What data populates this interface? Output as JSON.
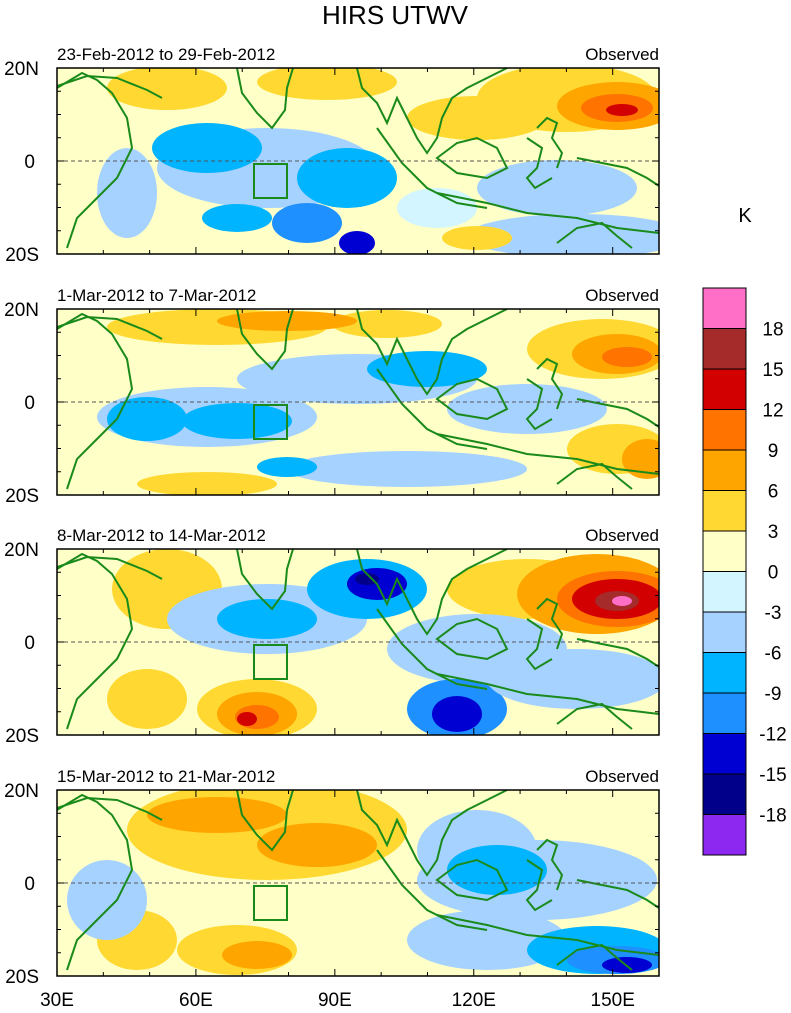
{
  "title": "HIRS UTWV",
  "unit_label": "K",
  "panels": [
    {
      "date_range": "23-Feb-2012 to 29-Feb-2012",
      "label_right": "Observed"
    },
    {
      "date_range": "1-Mar-2012 to 7-Mar-2012",
      "label_right": "Observed"
    },
    {
      "date_range": "8-Mar-2012 to 14-Mar-2012",
      "label_right": "Observed"
    },
    {
      "date_range": "15-Mar-2012 to 21-Mar-2012",
      "label_right": "Observed"
    }
  ],
  "lat_labels": [
    "20N",
    "0",
    "20S"
  ],
  "lon_labels": [
    "30E",
    "60E",
    "90E",
    "120E",
    "150E"
  ],
  "colorbar": {
    "ticks": [
      "18",
      "15",
      "12",
      "9",
      "6",
      "3",
      "0",
      "-3",
      "-6",
      "-9",
      "-12",
      "-15",
      "-18"
    ],
    "colors": [
      "#ff6ec7",
      "#a52a2a",
      "#d20000",
      "#ff7300",
      "#ffa500",
      "#ffd932",
      "#ffffc8",
      "#d2f5ff",
      "#a5d2ff",
      "#00b4ff",
      "#1e90ff",
      "#0000d2",
      "#00008b",
      "#8c28f0"
    ]
  }
}
